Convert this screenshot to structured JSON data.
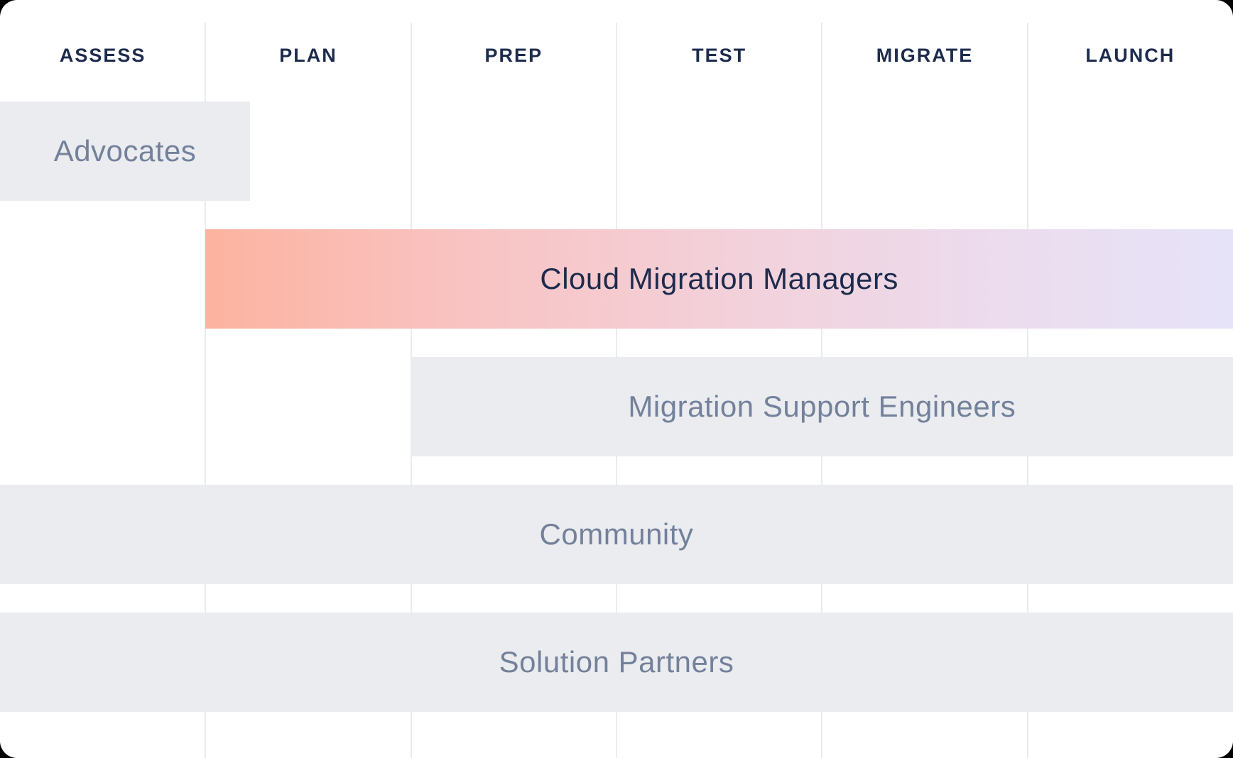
{
  "phases": [
    {
      "label": "ASSESS"
    },
    {
      "label": "PLAN"
    },
    {
      "label": "PREP"
    },
    {
      "label": "TEST"
    },
    {
      "label": "MIGRATE"
    },
    {
      "label": "LAUNCH"
    }
  ],
  "rows": [
    {
      "label": "Advocates",
      "phase_start": "ASSESS",
      "phase_end": "ASSESS",
      "variant": "gray"
    },
    {
      "label": "Cloud Migration Managers",
      "phase_start": "PLAN",
      "phase_end": "LAUNCH",
      "variant": "gradient"
    },
    {
      "label": "Migration Support Engineers",
      "phase_start": "PREP",
      "phase_end": "LAUNCH",
      "variant": "gray"
    },
    {
      "label": "Community",
      "phase_start": "ASSESS",
      "phase_end": "LAUNCH",
      "variant": "gray"
    },
    {
      "label": "Solution Partners",
      "phase_start": "ASSESS",
      "phase_end": "LAUNCH",
      "variant": "gray"
    }
  ],
  "colors": {
    "header_text": "#1d2b4d",
    "row_label_gray": "#74819b",
    "row_label_navy": "#1d2b4d",
    "bar_gray": "#ebecf0",
    "divider": "#e9ebef",
    "card_background": "#ffffff",
    "page_background": "#000000",
    "gradient_stops": [
      "#fcb3a0",
      "#f8c3c2",
      "#f3d0d9",
      "#ecdbec",
      "#e6e3f8"
    ]
  }
}
